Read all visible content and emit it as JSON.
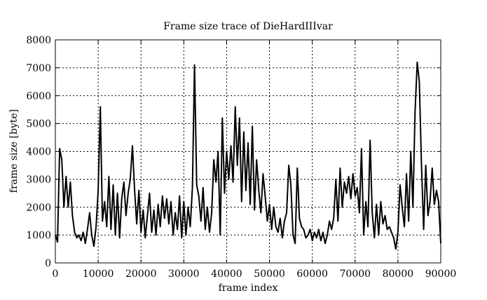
{
  "chart_data": {
    "type": "line",
    "title": "Frame size trace of DieHardIIIvar",
    "xlabel": "frame index",
    "ylabel": "frame size [byte]",
    "xlim": [
      0,
      90000
    ],
    "ylim": [
      0,
      8000
    ],
    "xticks": [
      0,
      10000,
      20000,
      30000,
      40000,
      50000,
      60000,
      70000,
      80000,
      90000
    ],
    "yticks": [
      0,
      1000,
      2000,
      3000,
      4000,
      5000,
      6000,
      7000,
      8000
    ],
    "grid": true,
    "line_color": "#000000",
    "x_step": 500,
    "values": [
      1000,
      750,
      4100,
      3700,
      2000,
      3100,
      2000,
      2900,
      1700,
      1100,
      900,
      1000,
      800,
      1100,
      700,
      1200,
      1800,
      1000,
      600,
      1300,
      2600,
      5600,
      1500,
      2200,
      1300,
      3100,
      1200,
      2800,
      1000,
      2500,
      900,
      2300,
      2900,
      1700,
      2500,
      3000,
      4200,
      2600,
      1400,
      2600,
      1100,
      1900,
      900,
      1700,
      2500,
      1100,
      1900,
      1000,
      2100,
      1300,
      2400,
      1600,
      2300,
      1400,
      2200,
      1000,
      1800,
      1200,
      2400,
      900,
      2200,
      1000,
      2000,
      1300,
      2700,
      7100,
      2800,
      2400,
      1500,
      2700,
      1200,
      2000,
      1100,
      1800,
      3700,
      2900,
      4000,
      1000,
      5200,
      2500,
      4000,
      3000,
      4200,
      2900,
      5600,
      3500,
      5200,
      2200,
      4700,
      2600,
      4300,
      2100,
      4900,
      1900,
      3700,
      2600,
      1800,
      3200,
      2400,
      1500,
      2100,
      1200,
      2000,
      1300,
      1100,
      1600,
      900,
      1500,
      1800,
      3500,
      2800,
      1000,
      700,
      3400,
      1600,
      1300,
      1200,
      900,
      1000,
      1200,
      800,
      1100,
      900,
      1200,
      800,
      1100,
      700,
      1000,
      1500,
      1200,
      1600,
      3000,
      1500,
      3400,
      2000,
      2900,
      2500,
      3100,
      2300,
      3200,
      2400,
      2700,
      1800,
      4100,
      1000,
      2200,
      1300,
      4400,
      1800,
      900,
      2100,
      1000,
      2200,
      1400,
      1700,
      1200,
      1300,
      1100,
      900,
      500,
      1100,
      2800,
      2000,
      1300,
      3200,
      1500,
      4000,
      2000,
      5400,
      7200,
      6500,
      3500,
      1200,
      3500,
      1700,
      2200,
      3400,
      2100,
      2600,
      2200,
      700
    ]
  }
}
